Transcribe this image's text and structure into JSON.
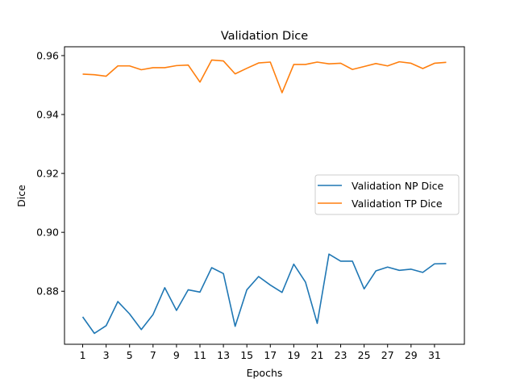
{
  "chart_data": {
    "type": "line",
    "title": "Validation Dice",
    "xlabel": "Epochs",
    "ylabel": "Dice",
    "x": [
      1,
      2,
      3,
      4,
      5,
      6,
      7,
      8,
      9,
      10,
      11,
      12,
      13,
      14,
      15,
      16,
      17,
      18,
      19,
      20,
      21,
      22,
      23,
      24,
      25,
      26,
      27,
      28,
      29,
      30,
      31,
      32
    ],
    "xticks": [
      1,
      3,
      5,
      7,
      9,
      11,
      13,
      15,
      17,
      19,
      21,
      23,
      25,
      27,
      29,
      31
    ],
    "yticks": [
      0.88,
      0.9,
      0.92,
      0.94,
      0.96
    ],
    "ytick_labels": [
      "0.88",
      "0.90",
      "0.92",
      "0.94",
      "0.96"
    ],
    "xlim": [
      -0.55,
      33.55
    ],
    "ylim": [
      0.862,
      0.963
    ],
    "grid": false,
    "legend_position": "center-right",
    "series": [
      {
        "name": "Validation NP Dice",
        "color": "#1f77b4",
        "values": [
          0.8713,
          0.8657,
          0.8683,
          0.8765,
          0.8723,
          0.867,
          0.8721,
          0.8812,
          0.8735,
          0.8805,
          0.8797,
          0.888,
          0.886,
          0.8681,
          0.8805,
          0.885,
          0.8821,
          0.8796,
          0.8892,
          0.8831,
          0.8691,
          0.8926,
          0.8902,
          0.8902,
          0.8808,
          0.8869,
          0.8882,
          0.8871,
          0.8875,
          0.8864,
          0.8893,
          0.8894
        ]
      },
      {
        "name": "Validation TP Dice",
        "color": "#ff7f0e",
        "values": [
          0.9537,
          0.9535,
          0.953,
          0.9565,
          0.9565,
          0.9552,
          0.9559,
          0.9559,
          0.9566,
          0.9568,
          0.951,
          0.9585,
          0.9582,
          0.9538,
          0.9557,
          0.9575,
          0.9578,
          0.9474,
          0.957,
          0.957,
          0.9578,
          0.9572,
          0.9574,
          0.9553,
          0.9563,
          0.9573,
          0.9565,
          0.9579,
          0.9574,
          0.9556,
          0.9574,
          0.9577
        ]
      }
    ]
  }
}
